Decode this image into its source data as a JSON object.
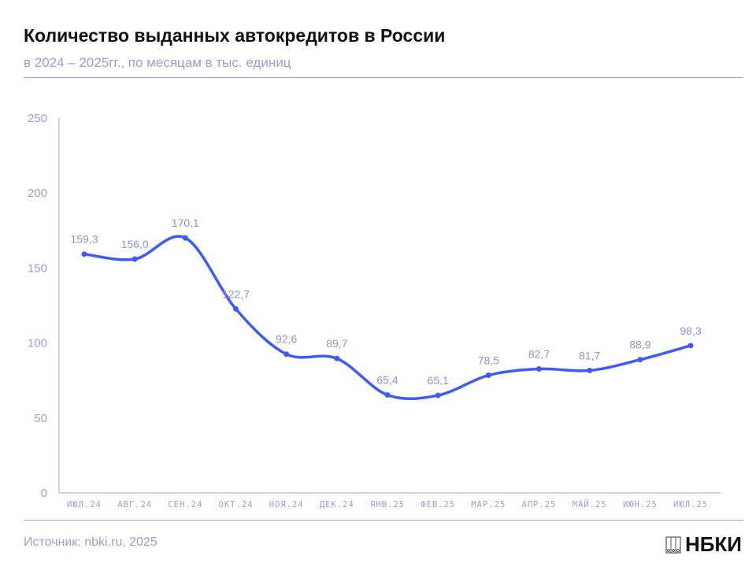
{
  "header": {
    "title": "Количество выданных автокредитов в России",
    "subtitle": "в 2024 – 2025гг., по месяцам в тыс. единиц"
  },
  "footer": {
    "source": "Источник: nbki.ru, 2025",
    "logo": "НБКИ"
  },
  "chart_data": {
    "type": "line",
    "title": "Количество выданных автокредитов в России",
    "subtitle": "в 2024 – 2025гг., по месяцам в тыс. единиц",
    "categories": [
      "ИЮЛ.24",
      "АВГ.24",
      "СЕН.24",
      "ОКТ.24",
      "НОЯ.24",
      "ДЕК.24",
      "ЯНВ.25",
      "ФЕВ.25",
      "МАР.25",
      "АПР.25",
      "МАЙ.25",
      "ИЮН.25",
      "ИЮЛ.25"
    ],
    "values": [
      159.3,
      156.0,
      170.1,
      122.7,
      92.6,
      89.7,
      65.4,
      65.1,
      78.5,
      82.7,
      81.7,
      88.9,
      98.3
    ],
    "labels": [
      "159,3",
      "156,0",
      "170,1",
      "122,7",
      "92,6",
      "89,7",
      "65,4",
      "65,1",
      "78,5",
      "82,7",
      "81,7",
      "88,9",
      "98,3"
    ],
    "ylim": [
      0,
      250
    ],
    "yticks": [
      0,
      50,
      100,
      150,
      200,
      250
    ],
    "grid": false,
    "smooth": true,
    "line_color": "#3d5afe",
    "label_color": "#8f94c8"
  }
}
